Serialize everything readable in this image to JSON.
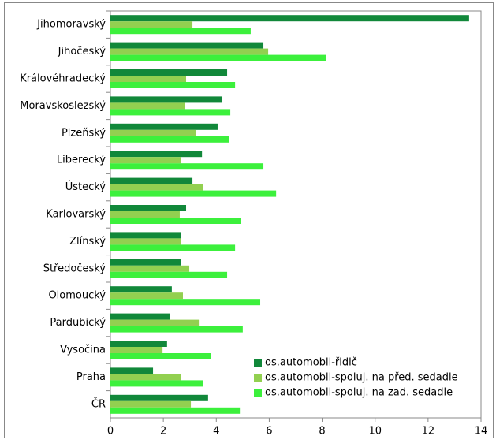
{
  "chart_data": {
    "type": "barh",
    "categories": [
      "Jihomoravský",
      "Jihočeský",
      "Královéhradecký",
      "Moravskoslezský",
      "Plzeňský",
      "Liberecký",
      "Ústecký",
      "Karlovarský",
      "Zlínský",
      "Středočeský",
      "Olomoucký",
      "Pardubický",
      "Vysočina",
      "Praha",
      "ČR"
    ],
    "series": [
      {
        "name": "os.automobil-řidič",
        "color": "#11883a",
        "values": [
          13.55,
          5.78,
          4.41,
          4.23,
          4.05,
          3.46,
          3.1,
          2.86,
          2.68,
          2.68,
          2.32,
          2.26,
          2.14,
          1.61,
          3.69
        ]
      },
      {
        "name": "os.automobil-spoluj. na před. sedadle",
        "color": "#92d050",
        "values": [
          3.1,
          5.96,
          2.86,
          2.8,
          3.22,
          2.68,
          3.51,
          2.62,
          2.68,
          2.98,
          2.74,
          3.34,
          1.97,
          2.68,
          3.04
        ]
      },
      {
        "name": "os.automobil-spoluj. na zad. sedadle",
        "color": "#3cf03c",
        "values": [
          5.3,
          8.16,
          4.71,
          4.53,
          4.47,
          5.78,
          6.26,
          4.94,
          4.71,
          4.41,
          5.66,
          5.0,
          3.81,
          3.51,
          4.89
        ]
      }
    ],
    "xlim": [
      0,
      14
    ],
    "xticks": [
      0,
      2,
      4,
      6,
      8,
      10,
      12,
      14
    ],
    "grid": false,
    "legend": "lower-right"
  }
}
